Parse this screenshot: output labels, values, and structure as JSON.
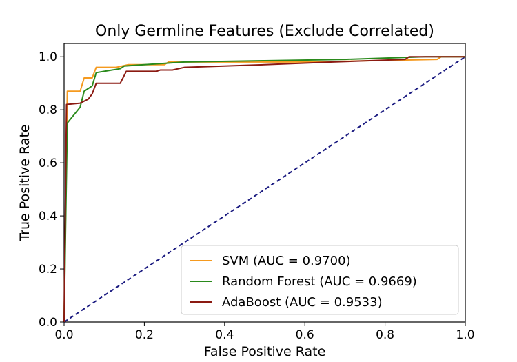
{
  "chart_data": {
    "type": "line",
    "title": "Only Germline Features (Exclude Correlated)",
    "xlabel": "False Positive Rate",
    "ylabel": "True Positive Rate",
    "xlim": [
      0.0,
      1.0
    ],
    "ylim": [
      0.0,
      1.05
    ],
    "xticks": [
      "0.0",
      "0.2",
      "0.4",
      "0.6",
      "0.8",
      "1.0"
    ],
    "yticks": [
      "0.0",
      "0.2",
      "0.4",
      "0.6",
      "0.8",
      "1.0"
    ],
    "xtick_values": [
      0,
      0.2,
      0.4,
      0.6,
      0.8,
      1.0
    ],
    "ytick_values": [
      0,
      0.2,
      0.4,
      0.6,
      0.8,
      1.0
    ],
    "grid": false,
    "legend_position": "lower-right",
    "diagonal": {
      "x": [
        0,
        1
      ],
      "y": [
        0,
        1
      ],
      "color": "#1a1a80",
      "style": "dashed"
    },
    "series": [
      {
        "name": "SVM (AUC = 0.9700)",
        "color": "#f59a1f",
        "x": [
          0,
          0.008,
          0.008,
          0.04,
          0.05,
          0.07,
          0.08,
          0.13,
          0.16,
          0.25,
          0.26,
          0.6,
          0.93,
          0.94,
          1.0
        ],
        "y": [
          0,
          0.87,
          0.87,
          0.87,
          0.92,
          0.92,
          0.96,
          0.96,
          0.97,
          0.97,
          0.98,
          0.98,
          0.99,
          1.0,
          1.0
        ]
      },
      {
        "name": "Random Forest (AUC = 0.9669)",
        "color": "#2a8a1c",
        "x": [
          0,
          0.008,
          0.04,
          0.05,
          0.07,
          0.08,
          0.1,
          0.14,
          0.15,
          0.2,
          0.3,
          0.5,
          0.7,
          0.9,
          1.0
        ],
        "y": [
          0,
          0.75,
          0.81,
          0.87,
          0.89,
          0.94,
          0.945,
          0.955,
          0.965,
          0.97,
          0.98,
          0.985,
          0.99,
          1.0,
          1.0
        ]
      },
      {
        "name": "AdaBoost (AUC = 0.9533)",
        "color": "#8b1a12",
        "x": [
          0,
          0.006,
          0.04,
          0.06,
          0.07,
          0.08,
          0.14,
          0.155,
          0.23,
          0.24,
          0.27,
          0.3,
          0.5,
          0.67,
          0.85,
          0.86,
          1.0
        ],
        "y": [
          0,
          0.82,
          0.825,
          0.84,
          0.86,
          0.9,
          0.9,
          0.945,
          0.945,
          0.95,
          0.95,
          0.96,
          0.97,
          0.98,
          0.99,
          1.0,
          1.0
        ]
      }
    ]
  }
}
